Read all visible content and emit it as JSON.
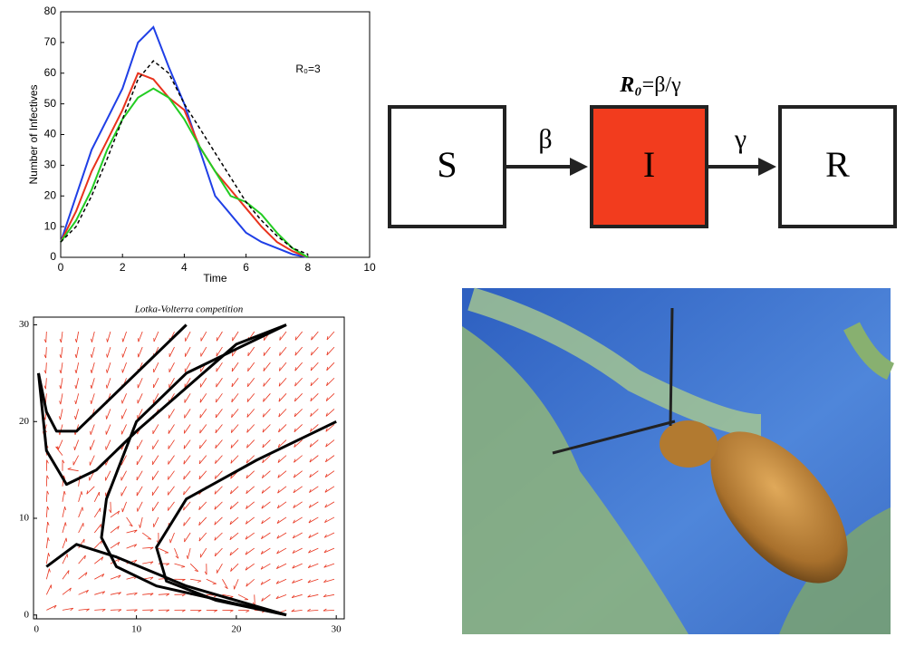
{
  "chart_data": [
    {
      "type": "line",
      "xlabel": "Time",
      "ylabel": "Number of Infectives",
      "annotation": "R₀=3",
      "x": [
        0,
        0.5,
        1,
        1.5,
        2,
        2.5,
        3,
        3.5,
        4,
        4.5,
        5,
        5.5,
        6,
        6.5,
        7,
        7.5,
        8
      ],
      "series": [
        {
          "color": "#1f3fe6",
          "dash": false,
          "values": [
            5,
            20,
            35,
            45,
            55,
            70,
            75,
            62,
            50,
            35,
            20,
            14,
            8,
            5,
            3,
            1,
            0
          ]
        },
        {
          "color": "#e8321c",
          "dash": false,
          "values": [
            5,
            15,
            28,
            38,
            48,
            60,
            58,
            52,
            48,
            36,
            28,
            22,
            16,
            10,
            5,
            2,
            0
          ]
        },
        {
          "color": "#22cc22",
          "dash": false,
          "values": [
            5,
            12,
            22,
            35,
            45,
            52,
            55,
            52,
            45,
            36,
            28,
            20,
            18,
            14,
            8,
            3,
            0
          ]
        },
        {
          "color": "#000000",
          "dash": true,
          "values": [
            5,
            10,
            20,
            32,
            45,
            58,
            64,
            60,
            50,
            42,
            34,
            26,
            18,
            12,
            7,
            3,
            1
          ]
        }
      ],
      "xlim": [
        0,
        10
      ],
      "xticks": [
        0,
        2,
        4,
        6,
        8,
        10
      ],
      "ylim": [
        0,
        80
      ],
      "yticks": [
        0,
        10,
        20,
        30,
        40,
        50,
        60,
        70,
        80
      ]
    },
    {
      "type": "phase",
      "title": "Lotka-Volterra competition",
      "field_color": "#e8321c",
      "xlim": [
        -0.3,
        30.8
      ],
      "xticks": [
        0,
        10,
        20,
        30
      ],
      "ylim": [
        -0.4,
        30.8
      ],
      "yticks": [
        0,
        10,
        20,
        30
      ],
      "series": [
        {
          "color": "#000000",
          "x": [
            0.2,
            1,
            2,
            4,
            8,
            15
          ],
          "y": [
            25,
            21,
            19,
            19,
            23,
            30
          ]
        },
        {
          "color": "#000000",
          "x": [
            0.2,
            1,
            3,
            6,
            10,
            20,
            25
          ],
          "y": [
            25,
            17,
            13.5,
            15,
            19,
            28,
            30
          ]
        },
        {
          "color": "#000000",
          "x": [
            1,
            4,
            8,
            15,
            25
          ],
          "y": [
            5,
            7.3,
            6,
            3,
            0
          ]
        },
        {
          "color": "#000000",
          "x": [
            25,
            15,
            10,
            7,
            6.5,
            8,
            12,
            25
          ],
          "y": [
            30,
            25,
            20,
            12,
            8,
            5,
            3,
            0
          ]
        },
        {
          "color": "#000000",
          "x": [
            30,
            22,
            15,
            12,
            13,
            18,
            25
          ],
          "y": [
            20,
            16,
            12,
            7,
            3.5,
            1.5,
            0
          ]
        }
      ]
    }
  ],
  "diagram": {
    "formula": {
      "lhs": "R₀",
      "rhs": "=β/γ"
    },
    "nodes": [
      {
        "label": "S",
        "color": "#ffffff"
      },
      {
        "label": "I",
        "color": "#f23c1e"
      },
      {
        "label": "R",
        "color": "#ffffff"
      }
    ],
    "edges": [
      {
        "label": "β"
      },
      {
        "label": "γ"
      }
    ]
  }
}
